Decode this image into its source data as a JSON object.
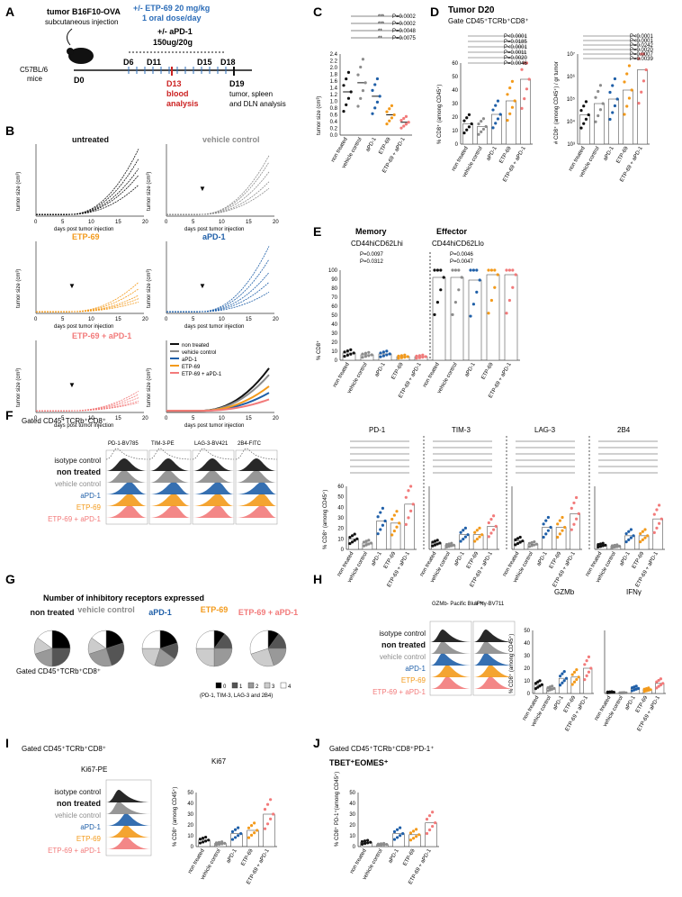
{
  "colors": {
    "nt": "#111111",
    "vc": "#8c8c8c",
    "apd1": "#1f5fa8",
    "etp": "#f39a1b",
    "combo": "#f27a7a",
    "blood": "#cc2222",
    "dose": "#2b6cb8"
  },
  "panel_letters": [
    "A",
    "B",
    "C",
    "D",
    "E",
    "F",
    "G",
    "H",
    "I",
    "J"
  ],
  "groups": [
    "non treated",
    "vehicle control",
    "aPD-1",
    "ETP-69",
    "ETP-69 + aPD-1"
  ],
  "panelA": {
    "tumor_line1": "tumor B16F10-OVA",
    "tumor_line2": "subcutaneous injection",
    "dose_line1": "+/- ETP-69 20 mg/kg",
    "dose_line2": "1 oral dose/day",
    "apd1_line1": "+/- aPD-1",
    "apd1_line2": "150ug/20g",
    "mice": "C57BL/6",
    "mice2": "mice",
    "days": [
      "D6",
      "D11",
      "D15",
      "D18"
    ],
    "d0": "D0",
    "d13_1": "D13",
    "d13_2": "blood",
    "d13_3": "analysis",
    "d19_1": "D19",
    "d19_2": "tumor, spleen",
    "d19_3": "and DLN analysis"
  },
  "panelB": {
    "titles": [
      "untreated",
      "vehicle control",
      "ETP-69",
      "aPD-1",
      "ETP-69 + aPD-1"
    ],
    "xlabel": "days post tumor injection",
    "ylabel": "tumor size (cm³)",
    "legend": [
      "non treated",
      "vehicle control",
      "aPD-1",
      "ETP-69",
      "ETP-69 + aPD-1"
    ],
    "yticks": [
      "0.0",
      "0.2",
      "0.4",
      "0.6",
      "0.8",
      "1.0",
      "1.2",
      "1.4",
      "1.6",
      "1.8",
      "2.0"
    ],
    "xticks": [
      "0",
      "5",
      "10",
      "15",
      "20"
    ]
  },
  "chart_data": [
    {
      "type": "scatter",
      "panel": "C",
      "title": "",
      "ylabel": "tumor size (cm³)",
      "ylim": [
        0,
        2.4
      ],
      "yticks": [
        "0.0",
        "0.2",
        "0.4",
        "0.6",
        "0.8",
        "1.0",
        "1.2",
        "1.4",
        "1.6",
        "1.8",
        "2.0",
        "2.2",
        "2.4"
      ],
      "categories": [
        "non treated",
        "vehicle control",
        "aPD-1",
        "ETP-69",
        "ETP-69 + aPD-1"
      ],
      "means": [
        1.28,
        1.55,
        1.15,
        0.6,
        0.38
      ],
      "points": [
        [
          1.9,
          1.6,
          1.4,
          1.3,
          1.1,
          0.9,
          0.7
        ],
        [
          2.0,
          1.9,
          1.6,
          1.2,
          0.9
        ],
        [
          1.8,
          1.0,
          0.8,
          0.6
        ],
        [
          1.2,
          0.9,
          0.7,
          0.6,
          0.5,
          0.4,
          0.3,
          0.2
        ],
        [
          0.6,
          0.5,
          0.45,
          0.4,
          0.35,
          0.3,
          0.3,
          0.25
        ]
      ],
      "pvalues": [
        "P=0.0002",
        "P=0.0002",
        "P=0.0048",
        "P=0.0075"
      ],
      "stars": [
        "***",
        "***",
        "**",
        "**"
      ]
    },
    {
      "type": "scatter",
      "panel": "D-left",
      "title": "Tumor D20",
      "subtitle": "Gate CD45⁺TCRb⁺CD8⁺",
      "ylabel": "% CD8⁺ (among CD45⁺)",
      "ylim": [
        0,
        60
      ],
      "yticks": [
        "0",
        "10",
        "20",
        "30",
        "40",
        "50",
        "60"
      ],
      "means": [
        15,
        13,
        22,
        32,
        48
      ],
      "pvalues": [
        "P<0.0001",
        "P=0.0185",
        "P<0.0001",
        "P=0.0011",
        "P=0.0020",
        "P=0.0046"
      ]
    },
    {
      "type": "scatter",
      "panel": "D-right",
      "ylabel": "# CD8⁺ (among CD45⁺) / gr tumor",
      "yticks": [
        "10³",
        "10⁴",
        "10⁵",
        "10⁶",
        "10⁷"
      ],
      "means_log": [
        4.3,
        4.8,
        5.0,
        5.4,
        6.3
      ],
      "pvalues": [
        "P<0.0001",
        "P<0.0001",
        "P=0.0242",
        "P=0.0020",
        "P=0.0007",
        "P=0.0039"
      ]
    },
    {
      "type": "bar",
      "panel": "E",
      "titles": [
        "Memory",
        "Effector"
      ],
      "subtitles": [
        "CD44hiCD62Lhi",
        "CD44hiCD62Llo"
      ],
      "ylabel": "% CD8⁺",
      "ylim": [
        0,
        100
      ],
      "yticks": [
        "0",
        "10",
        "20",
        "30",
        "40",
        "50",
        "60",
        "70",
        "80",
        "90",
        "100"
      ],
      "memory": [
        8,
        6,
        7,
        4,
        4
      ],
      "effector": [
        92,
        92,
        89,
        95,
        95
      ],
      "pvalues": [
        "P=0.0097",
        "P=0.0312",
        "P=0.0046",
        "P=0.0047"
      ]
    },
    {
      "type": "bar",
      "panel": "F",
      "titles": [
        "PD-1",
        "TIM-3",
        "LAG-3",
        "2B4"
      ],
      "ylabel": "% CD8⁺ (among CD45⁺)",
      "ylim": [
        0,
        60
      ],
      "yticks": [
        "0",
        "10",
        "20",
        "30",
        "40",
        "50",
        "60"
      ],
      "series": [
        {
          "name": "PD-1",
          "values": [
            10,
            6,
            27,
            25,
            43
          ]
        },
        {
          "name": "TIM-3",
          "values": [
            6,
            4,
            14,
            14,
            22
          ]
        },
        {
          "name": "LAG-3",
          "values": [
            8,
            5,
            21,
            21,
            34
          ]
        },
        {
          "name": "2B4",
          "values": [
            4,
            3,
            13,
            13,
            29
          ]
        }
      ]
    },
    {
      "type": "pie",
      "panel": "G",
      "title": "Number of inhibitory receptors expressed",
      "legend": [
        "0",
        "1",
        "2",
        "3",
        "4"
      ],
      "note": "(PD-1, TIM-3, LAG-3 and 2B4)",
      "slices": [
        [
          25,
          25,
          20,
          15,
          15
        ],
        [
          20,
          25,
          25,
          15,
          15
        ],
        [
          20,
          15,
          20,
          20,
          25
        ],
        [
          10,
          15,
          25,
          25,
          25
        ],
        [
          10,
          15,
          20,
          25,
          30
        ]
      ]
    },
    {
      "type": "bar",
      "panel": "H",
      "titles": [
        "GZMb",
        "IFNγ"
      ],
      "ylabel": "% CD8⁺ (among CD45⁺)",
      "ylim": [
        0,
        50
      ],
      "yticks": [
        "0",
        "10",
        "20",
        "30",
        "40",
        "50"
      ],
      "series": [
        {
          "name": "GZMb",
          "values": [
            7,
            4,
            12,
            13,
            20
          ]
        },
        {
          "name": "IFNγ",
          "values": [
            1,
            0.5,
            4,
            3,
            8
          ]
        }
      ]
    },
    {
      "type": "bar",
      "panel": "I",
      "title": "Ki67",
      "ylabel": "% CD8⁺ (among CD45⁺)",
      "ylim": [
        0,
        50
      ],
      "yticks": [
        "0",
        "10",
        "20",
        "30",
        "40",
        "50"
      ],
      "values": [
        6,
        3,
        12,
        15,
        30
      ]
    },
    {
      "type": "bar",
      "panel": "J",
      "title": "TBET⁺EOMES⁺",
      "ylabel": "% CD8⁺ PD-1⁺(among CD45⁺)",
      "ylim": [
        0,
        50
      ],
      "yticks": [
        "0",
        "10",
        "20",
        "30",
        "40",
        "50"
      ],
      "values": [
        4,
        2,
        12,
        11,
        22
      ]
    }
  ],
  "panelF": {
    "gate": "Gated CD45⁺TCRb⁺CD8⁺",
    "stains": [
      "PD-1-BV785",
      "TIM-3-PE",
      "LAG-3-BV421",
      "2B4-FITC"
    ],
    "rows": [
      "isotype control",
      "non treated",
      "vehicle control",
      "aPD-1",
      "ETP-69",
      "ETP-69 + aPD-1"
    ]
  },
  "panelG": {
    "gate": "Gated CD45⁺TCRb⁺CD8⁺",
    "labels": [
      "non treated",
      "vehicle control",
      "aPD-1",
      "ETP-69",
      "ETP-69 + aPD-1"
    ]
  },
  "panelH": {
    "stains": [
      "GZMb- Pacific Blue™",
      "IFNγ-BV711"
    ]
  },
  "panelI": {
    "gate": "Gated CD45⁺TCRb⁺CD8⁺",
    "stain": "Ki67-PE"
  },
  "panelJ": {
    "gate": "Gated CD45⁺TCRb⁺CD8⁺PD-1⁺"
  }
}
